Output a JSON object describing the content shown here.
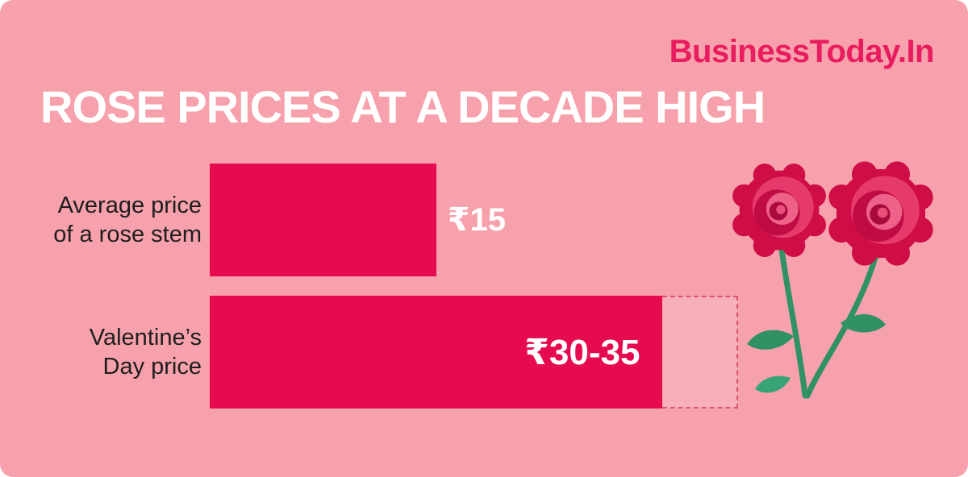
{
  "brand": {
    "name": "BusinessToday.In"
  },
  "title": "ROSE PRICES AT A DECADE HIGH",
  "illustration": {
    "name": "roses-icon"
  },
  "colors": {
    "background": "#f6a1ab",
    "bar": "#e60a4f",
    "logo": "#e81c5e",
    "title_text": "#ffffff",
    "label_text": "#1e1e1e",
    "value_text": "#ffffff",
    "dashed_border": "#d9536f",
    "stem_green": "#2f9164"
  },
  "chart_data": {
    "type": "bar",
    "orientation": "horizontal",
    "title": "ROSE PRICES AT A DECADE HIGH",
    "unit": "₹",
    "axis_max": 35,
    "grid": false,
    "legend": false,
    "bar_color": "#e60a4f",
    "categories": [
      "Average price of a rose stem",
      "Valentine’s Day price"
    ],
    "rows": [
      {
        "label_lines": [
          "Average price",
          "of a rose stem"
        ],
        "value": 15,
        "value_max": 15,
        "value_label": "₹15",
        "value_label_position": "outside-right"
      },
      {
        "label_lines": [
          "Valentine’s",
          "Day price"
        ],
        "value": 30,
        "value_max": 35,
        "value_label": "₹30-35",
        "value_label_position": "inside-right",
        "dashed_range_shown": true
      }
    ]
  }
}
